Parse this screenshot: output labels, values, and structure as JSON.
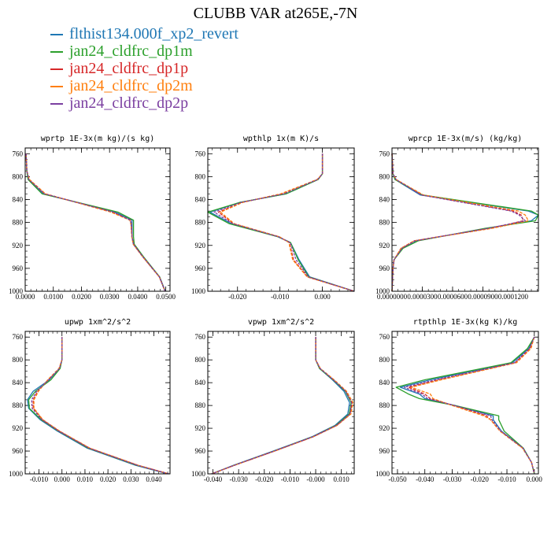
{
  "figure": {
    "title": "CLUBB VAR at265E,-7N"
  },
  "legend": [
    {
      "label": "flthist134.000f_xp2_revert",
      "color": "#1f77b4"
    },
    {
      "label": "jan24_cldfrc_dp1m",
      "color": "#2ca02c"
    },
    {
      "label": "jan24_cldfrc_dp1p",
      "color": "#d62728"
    },
    {
      "label": "jan24_cldfrc_dp2m",
      "color": "#ff7f0e"
    },
    {
      "label": "jan24_cldfrc_dp2p",
      "color": "#7b3fa0"
    }
  ],
  "chart_data": [
    {
      "type": "line",
      "title": "wprtp  1E-3x(m kg)/(s kg)",
      "xlim": [
        0.0,
        0.0515
      ],
      "ylim": [
        1000,
        750
      ],
      "xticks": [
        "0.0000",
        "0.0100",
        "0.0200",
        "0.0300",
        "0.0400",
        "0.0500"
      ],
      "xtick_values": [
        0.0,
        0.01,
        0.02,
        0.03,
        0.04,
        0.05
      ],
      "yticks": [
        760,
        800,
        840,
        880,
        920,
        960,
        1000
      ],
      "y": [
        760,
        790,
        805,
        830,
        862,
        876,
        883,
        905,
        918,
        940,
        975,
        992,
        1000
      ],
      "series": [
        {
          "x": [
            0.0003,
            0.0006,
            0.0012,
            0.0065,
            0.032,
            0.038,
            0.038,
            0.038,
            0.0385,
            0.042,
            0.0478,
            0.0492,
            0.0498
          ]
        },
        {
          "x": [
            0.0003,
            0.0006,
            0.001,
            0.006,
            0.033,
            0.0385,
            0.0385,
            0.0385,
            0.0388,
            0.0421,
            0.0478,
            0.0491,
            0.0498
          ]
        },
        {
          "x": [
            0.0003,
            0.0006,
            0.0014,
            0.007,
            0.031,
            0.0375,
            0.0377,
            0.038,
            0.0385,
            0.0418,
            0.0477,
            0.0491,
            0.0497
          ]
        },
        {
          "x": [
            0.0003,
            0.0006,
            0.0015,
            0.0072,
            0.0305,
            0.0372,
            0.0376,
            0.0379,
            0.0384,
            0.0418,
            0.0477,
            0.0491,
            0.0497
          ]
        },
        {
          "x": [
            0.0003,
            0.0006,
            0.0013,
            0.0068,
            0.0315,
            0.0374,
            0.0377,
            0.038,
            0.0385,
            0.0419,
            0.0477,
            0.0491,
            0.0497
          ]
        }
      ]
    },
    {
      "type": "line",
      "title": "wpthlp  1x(m K)/s",
      "xlim": [
        -0.027,
        0.0075
      ],
      "ylim": [
        1000,
        750
      ],
      "xticks": [
        "-0.020",
        "-0.010",
        "0.000"
      ],
      "xtick_values": [
        -0.02,
        -0.01,
        0.0
      ],
      "yticks": [
        760,
        800,
        840,
        880,
        920,
        960,
        1000
      ],
      "y": [
        760,
        795,
        805,
        830,
        845,
        862,
        882,
        905,
        915,
        945,
        975,
        1000
      ],
      "series": [
        {
          "x": [
            0.0,
            0.0,
            -0.001,
            -0.0085,
            -0.0195,
            -0.0265,
            -0.0215,
            -0.0105,
            -0.0075,
            -0.0055,
            -0.003,
            0.0075
          ]
        },
        {
          "x": [
            0.0,
            0.0,
            -0.001,
            -0.0085,
            -0.0195,
            -0.027,
            -0.022,
            -0.0105,
            -0.0075,
            -0.0057,
            -0.0032,
            0.0075
          ]
        },
        {
          "x": [
            0.0,
            0.0,
            -0.0012,
            -0.0095,
            -0.019,
            -0.0245,
            -0.021,
            -0.0102,
            -0.0078,
            -0.0068,
            -0.0035,
            0.0075
          ]
        },
        {
          "x": [
            0.0,
            0.0,
            -0.0012,
            -0.0098,
            -0.0188,
            -0.024,
            -0.0208,
            -0.0101,
            -0.0079,
            -0.007,
            -0.0036,
            0.0075
          ]
        },
        {
          "x": [
            0.0,
            0.0,
            -0.0011,
            -0.009,
            -0.0192,
            -0.0255,
            -0.0212,
            -0.0103,
            -0.0076,
            -0.0062,
            -0.0033,
            0.0075
          ]
        }
      ]
    },
    {
      "type": "line",
      "title": "wprcp  1E-3x(m/s) (kg/kg)",
      "xlim": [
        0.0,
        0.000145
      ],
      "ylim": [
        1000,
        750
      ],
      "xticks": [
        "0.0000000",
        "0.0000300",
        "0.0000600",
        "0.0000900",
        "0.0001200"
      ],
      "xtick_values": [
        0.0,
        3e-05,
        6e-05,
        9e-05,
        0.00012
      ],
      "yticks": [
        760,
        800,
        840,
        880,
        920,
        960,
        1000
      ],
      "y": [
        760,
        795,
        805,
        832,
        860,
        867,
        877,
        890,
        912,
        925,
        945,
        960,
        1000
      ],
      "series": [
        {
          "x": [
            0,
            1e-06,
            3e-06,
            2.8e-05,
            0.000135,
            0.000145,
            0.000138,
            9.5e-05,
            2.5e-05,
            1e-05,
            2e-06,
            1e-06,
            0
          ]
        },
        {
          "x": [
            0,
            1e-06,
            3e-06,
            3e-05,
            0.000138,
            0.000145,
            0.000142,
            9.3e-05,
            2.6e-05,
            1.1e-05,
            2e-06,
            1e-06,
            0
          ]
        },
        {
          "x": [
            0,
            1e-06,
            4e-06,
            3e-05,
            0.00012,
            0.000128,
            0.00013,
            9.8e-05,
            2.2e-05,
            9e-06,
            2e-06,
            1e-06,
            0
          ]
        },
        {
          "x": [
            0,
            1e-06,
            4e-06,
            3.1e-05,
            0.000125,
            0.000132,
            0.000135,
            0.0001,
            2.2e-05,
            9e-06,
            2e-06,
            1e-06,
            0
          ]
        },
        {
          "x": [
            0,
            1e-06,
            4e-06,
            2.9e-05,
            0.000118,
            0.000126,
            0.000132,
            9.6e-05,
            2.3e-05,
            1e-05,
            2e-06,
            1e-06,
            0
          ]
        }
      ]
    },
    {
      "type": "line",
      "title": "upwp  1xm^2/s^2",
      "xlim": [
        -0.016,
        0.047
      ],
      "ylim": [
        1000,
        750
      ],
      "xticks": [
        "-0.010",
        "0.000",
        "0.010",
        "0.020",
        "0.030",
        "0.040"
      ],
      "xtick_values": [
        -0.01,
        0.0,
        0.01,
        0.02,
        0.03,
        0.04
      ],
      "yticks": [
        760,
        800,
        840,
        880,
        920,
        960,
        1000
      ],
      "y": [
        760,
        800,
        815,
        835,
        855,
        870,
        885,
        905,
        925,
        955,
        985,
        1000
      ],
      "series": [
        {
          "x": [
            0.0,
            0.0,
            -0.001,
            -0.0055,
            -0.0125,
            -0.015,
            -0.0145,
            -0.0095,
            -0.002,
            0.011,
            0.032,
            0.046
          ]
        },
        {
          "x": [
            0.0,
            0.0,
            -0.0008,
            -0.0048,
            -0.0115,
            -0.0145,
            -0.0142,
            -0.009,
            -0.0015,
            0.0115,
            0.0325,
            0.0465
          ]
        },
        {
          "x": [
            0.0,
            0.0,
            -0.0012,
            -0.006,
            -0.0105,
            -0.0125,
            -0.0125,
            -0.0085,
            -0.0012,
            0.012,
            0.033,
            0.0465
          ]
        },
        {
          "x": [
            0.0,
            0.0,
            -0.0013,
            -0.0062,
            -0.0102,
            -0.0122,
            -0.0122,
            -0.0083,
            -0.001,
            0.0122,
            0.0332,
            0.0465
          ]
        },
        {
          "x": [
            0.0,
            0.0,
            -0.0011,
            -0.0058,
            -0.011,
            -0.0132,
            -0.013,
            -0.0087,
            -0.0013,
            0.0118,
            0.0328,
            0.0465
          ]
        }
      ]
    },
    {
      "type": "line",
      "title": "vpwp  1xm^2/s^2",
      "xlim": [
        -0.042,
        0.015
      ],
      "ylim": [
        1000,
        750
      ],
      "xticks": [
        "-0.040",
        "-0.030",
        "-0.020",
        "-0.010",
        "-0.000",
        "0.010"
      ],
      "xtick_values": [
        -0.04,
        -0.03,
        -0.02,
        -0.01,
        0.0,
        0.01
      ],
      "yticks": [
        760,
        800,
        840,
        880,
        920,
        960,
        1000
      ],
      "y": [
        760,
        800,
        815,
        835,
        855,
        875,
        895,
        915,
        935,
        960,
        985,
        1000
      ],
      "series": [
        {
          "x": [
            0.0,
            0.0,
            0.0015,
            0.0065,
            0.011,
            0.0132,
            0.0125,
            0.0075,
            -0.0015,
            -0.0165,
            -0.032,
            -0.0405
          ]
        },
        {
          "x": [
            0.0,
            0.0,
            0.0015,
            0.0068,
            0.0115,
            0.0138,
            0.013,
            0.0078,
            -0.0012,
            -0.0162,
            -0.0318,
            -0.0405
          ]
        },
        {
          "x": [
            0.0,
            0.0,
            0.0018,
            0.007,
            0.0118,
            0.0142,
            0.0135,
            0.0082,
            -0.001,
            -0.016,
            -0.0316,
            -0.0405
          ]
        },
        {
          "x": [
            0.0,
            0.0,
            0.0018,
            0.0072,
            0.012,
            0.0145,
            0.0137,
            0.0083,
            -0.0009,
            -0.0159,
            -0.0316,
            -0.0405
          ]
        },
        {
          "x": [
            0.0,
            0.0,
            0.0017,
            0.0069,
            0.0117,
            0.014,
            0.0133,
            0.008,
            -0.0011,
            -0.0161,
            -0.0317,
            -0.0405
          ]
        }
      ]
    },
    {
      "type": "line",
      "title": "rtpthlp  1E-3x(kg K)/kg",
      "xlim": [
        -0.052,
        0.0015
      ],
      "ylim": [
        1000,
        750
      ],
      "xticks": [
        "-0.050",
        "-0.040",
        "-0.030",
        "-0.020",
        "-0.010",
        "0.000"
      ],
      "xtick_values": [
        -0.05,
        -0.04,
        -0.03,
        -0.02,
        -0.01,
        0.0
      ],
      "yticks": [
        760,
        800,
        840,
        880,
        920,
        960,
        1000
      ],
      "y": [
        760,
        780,
        805,
        835,
        848,
        860,
        868,
        880,
        898,
        905,
        925,
        955,
        980,
        1000
      ],
      "series": [
        {
          "x": [
            0.0,
            -0.002,
            -0.008,
            -0.038,
            -0.049,
            -0.042,
            -0.04,
            -0.029,
            -0.015,
            -0.015,
            -0.012,
            -0.004,
            -0.001,
            0.0
          ]
        },
        {
          "x": [
            0.0,
            -0.0025,
            -0.0085,
            -0.04,
            -0.0505,
            -0.046,
            -0.042,
            -0.029,
            -0.013,
            -0.013,
            -0.011,
            -0.004,
            -0.001,
            0.0
          ]
        },
        {
          "x": [
            0.0,
            -0.0015,
            -0.007,
            -0.035,
            -0.046,
            -0.04,
            -0.038,
            -0.0295,
            -0.0175,
            -0.016,
            -0.0125,
            -0.0042,
            -0.001,
            0.0
          ]
        },
        {
          "x": [
            0.0,
            -0.0012,
            -0.0065,
            -0.034,
            -0.045,
            -0.038,
            -0.037,
            -0.03,
            -0.0185,
            -0.016,
            -0.0125,
            -0.0043,
            -0.001,
            0.0
          ]
        },
        {
          "x": [
            0.0,
            -0.0018,
            -0.0072,
            -0.036,
            -0.0475,
            -0.041,
            -0.039,
            -0.0292,
            -0.016,
            -0.0155,
            -0.0122,
            -0.0041,
            -0.001,
            0.0
          ]
        }
      ]
    }
  ]
}
